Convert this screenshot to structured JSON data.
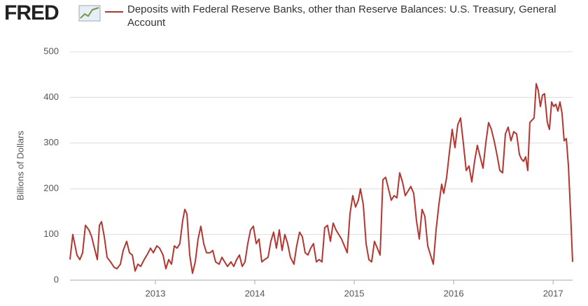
{
  "logo": "FRED",
  "chart_data": {
    "type": "line",
    "ylabel": "Billions of Dollars",
    "x": [
      2012.141,
      2012.169,
      2012.211,
      2012.24,
      2012.268,
      2012.296,
      2012.331,
      2012.359,
      2012.387,
      2012.416,
      2012.437,
      2012.458,
      2012.486,
      2012.514,
      2012.549,
      2012.585,
      2012.613,
      2012.648,
      2012.676,
      2012.711,
      2012.739,
      2012.768,
      2012.796,
      2012.824,
      2012.852,
      2012.887,
      2012.915,
      2012.951,
      2012.979,
      2013.014,
      2013.042,
      2013.077,
      2013.105,
      2013.134,
      2013.162,
      2013.19,
      2013.218,
      2013.246,
      2013.274,
      2013.296,
      2013.317,
      2013.345,
      2013.373,
      2013.401,
      2013.429,
      2013.457,
      2013.486,
      2013.514,
      2013.549,
      2013.577,
      2013.605,
      2013.641,
      2013.669,
      2013.697,
      2013.725,
      2013.76,
      2013.788,
      2013.817,
      2013.845,
      2013.873,
      2013.901,
      2013.929,
      2013.957,
      2013.985,
      2014.014,
      2014.042,
      2014.07,
      2014.098,
      2014.133,
      2014.161,
      2014.189,
      2014.217,
      2014.246,
      2014.274,
      2014.302,
      2014.33,
      2014.358,
      2014.393,
      2014.421,
      2014.45,
      2014.478,
      2014.506,
      2014.534,
      2014.562,
      2014.59,
      2014.619,
      2014.647,
      2014.675,
      2014.703,
      2014.731,
      2014.76,
      2014.788,
      2014.816,
      2014.844,
      2014.872,
      2014.901,
      2014.929,
      2014.957,
      2014.985,
      2015.013,
      2015.041,
      2015.062,
      2015.091,
      2015.119,
      2015.147,
      2015.175,
      2015.203,
      2015.232,
      2015.26,
      2015.288,
      2015.316,
      2015.344,
      2015.372,
      2015.401,
      2015.429,
      2015.457,
      2015.485,
      2015.513,
      2015.541,
      2015.569,
      2015.598,
      2015.626,
      2015.654,
      2015.682,
      2015.71,
      2015.739,
      2015.767,
      2015.795,
      2015.823,
      2015.851,
      2015.879,
      2015.9,
      2015.929,
      2015.957,
      2015.985,
      2016.013,
      2016.041,
      2016.069,
      2016.097,
      2016.126,
      2016.154,
      2016.182,
      2016.21,
      2016.238,
      2016.266,
      2016.295,
      2016.323,
      2016.351,
      2016.379,
      2016.407,
      2016.435,
      2016.464,
      2016.492,
      2016.52,
      2016.548,
      2016.576,
      2016.604,
      2016.633,
      2016.661,
      2016.682,
      2016.703,
      2016.724,
      2016.745,
      2016.766,
      2016.787,
      2016.809,
      2016.83,
      2016.851,
      2016.872,
      2016.893,
      2016.914,
      2016.942,
      2016.963,
      2016.985,
      2017.006,
      2017.027,
      2017.048,
      2017.069,
      2017.09,
      2017.111,
      2017.133,
      2017.154,
      2017.175,
      2017.196
    ],
    "series": [
      {
        "name": "Deposits with Federal Reserve Banks, other than Reserve Balances: U.S. Treasury, General Account",
        "color": "#b5352f",
        "values": [
          45,
          100,
          55,
          45,
          60,
          120,
          110,
          95,
          70,
          45,
          120,
          128,
          95,
          50,
          40,
          28,
          25,
          35,
          65,
          85,
          60,
          55,
          20,
          35,
          30,
          45,
          55,
          70,
          60,
          75,
          70,
          55,
          25,
          45,
          35,
          75,
          70,
          80,
          130,
          155,
          145,
          55,
          15,
          40,
          90,
          118,
          80,
          60,
          60,
          65,
          40,
          35,
          50,
          40,
          30,
          40,
          30,
          45,
          55,
          30,
          40,
          80,
          110,
          118,
          80,
          90,
          40,
          45,
          50,
          85,
          105,
          70,
          110,
          65,
          100,
          80,
          50,
          35,
          75,
          105,
          95,
          60,
          55,
          70,
          80,
          40,
          45,
          40,
          115,
          120,
          85,
          125,
          110,
          100,
          90,
          75,
          60,
          145,
          185,
          160,
          175,
          200,
          165,
          80,
          45,
          40,
          85,
          70,
          55,
          220,
          225,
          200,
          175,
          185,
          180,
          235,
          215,
          185,
          195,
          205,
          190,
          130,
          90,
          155,
          140,
          75,
          55,
          35,
          110,
          165,
          210,
          190,
          225,
          280,
          330,
          290,
          340,
          355,
          300,
          240,
          250,
          215,
          260,
          295,
          270,
          245,
          300,
          345,
          330,
          305,
          275,
          240,
          235,
          320,
          335,
          305,
          325,
          320,
          275,
          265,
          260,
          270,
          240,
          345,
          350,
          355,
          430,
          415,
          380,
          405,
          408,
          345,
          330,
          390,
          380,
          385,
          370,
          390,
          365,
          305,
          310,
          250,
          150,
          40
        ]
      }
    ],
    "xlim": [
      2012.141,
      2017.196
    ],
    "xticks": [
      2013,
      2014,
      2015,
      2016,
      2017
    ],
    "ylim": [
      0,
      500
    ],
    "yticks": [
      0,
      100,
      200,
      300,
      400,
      500
    ],
    "grid": true
  }
}
